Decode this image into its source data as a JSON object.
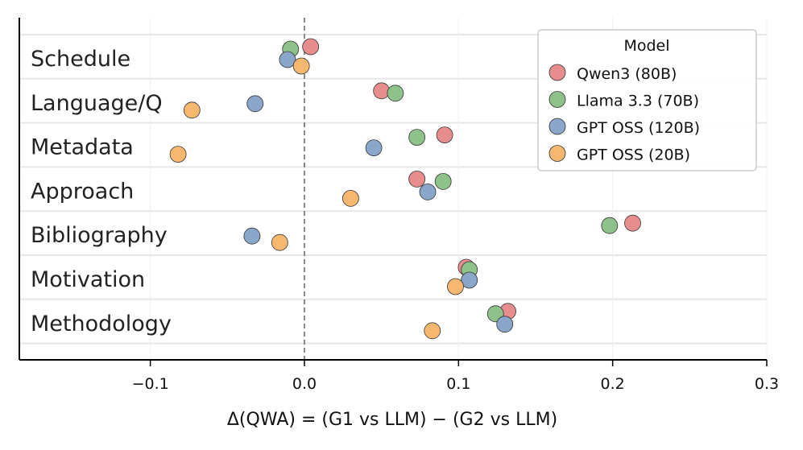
{
  "chart_data": {
    "type": "scatter",
    "title": "",
    "xlabel": "Δ(QWA) = (G1 vs LLM) − (G2 vs LLM)",
    "ylabel": "",
    "xlim": [
      -0.185,
      0.3
    ],
    "xticks": [
      -0.1,
      0.0,
      0.1,
      0.2,
      0.3
    ],
    "xtick_labels": [
      "−0.1",
      "0.0",
      "0.1",
      "0.2",
      "0.3"
    ],
    "grid": true,
    "reference_line": {
      "x": 0.0,
      "style": "dashed"
    },
    "categories": [
      "Schedule",
      "Language/Q",
      "Metadata",
      "Approach",
      "Bibliography",
      "Motivation",
      "Methodology"
    ],
    "legend": {
      "title": "Model",
      "position": "top-right"
    },
    "series": [
      {
        "name": "Qwen3 (80B)",
        "color": "#e88d8d",
        "values": [
          0.004,
          0.05,
          0.091,
          0.073,
          0.213,
          0.105,
          0.132
        ]
      },
      {
        "name": "Llama 3.3 (70B)",
        "color": "#8fc18b",
        "values": [
          -0.009,
          0.059,
          0.073,
          0.09,
          0.198,
          0.107,
          0.124
        ]
      },
      {
        "name": "GPT OSS (120B)",
        "color": "#8aa6c8",
        "values": [
          -0.011,
          -0.032,
          0.045,
          0.08,
          -0.034,
          0.107,
          0.13
        ]
      },
      {
        "name": "GPT OSS (20B)",
        "color": "#f6b76e",
        "values": [
          -0.002,
          -0.073,
          -0.082,
          0.03,
          -0.016,
          0.098,
          0.083
        ]
      }
    ]
  }
}
